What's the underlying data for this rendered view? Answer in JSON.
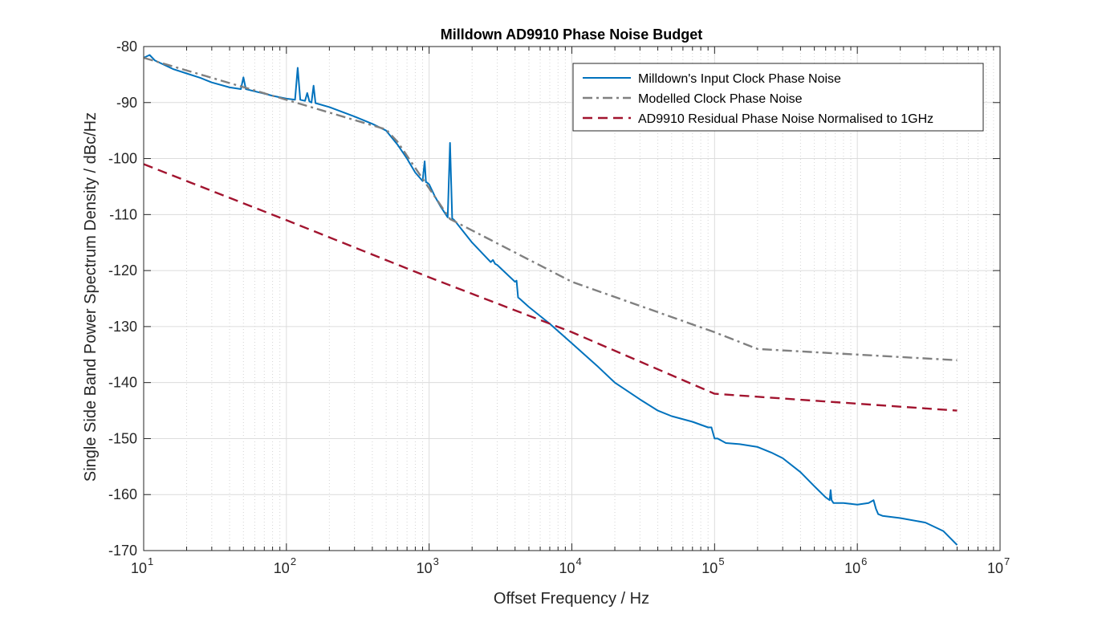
{
  "chart_data": {
    "type": "line",
    "title": "Milldown AD9910 Phase Noise Budget",
    "xlabel": "Offset Frequency / Hz",
    "ylabel": "Single Side Band Power Spectrum Density / dBc/Hz",
    "xscale": "log",
    "xlim": [
      10,
      10000000
    ],
    "ylim": [
      -170,
      -80
    ],
    "grid": true,
    "legend_position": "top-right",
    "xticks": [
      {
        "base": "10",
        "exp": "1",
        "value": 10
      },
      {
        "base": "10",
        "exp": "2",
        "value": 100
      },
      {
        "base": "10",
        "exp": "3",
        "value": 1000
      },
      {
        "base": "10",
        "exp": "4",
        "value": 10000
      },
      {
        "base": "10",
        "exp": "5",
        "value": 100000
      },
      {
        "base": "10",
        "exp": "6",
        "value": 1000000
      },
      {
        "base": "10",
        "exp": "7",
        "value": 10000000
      }
    ],
    "yticks": [
      {
        "label": "-80",
        "value": -80
      },
      {
        "label": "-90",
        "value": -90
      },
      {
        "label": "-100",
        "value": -100
      },
      {
        "label": "-110",
        "value": -110
      },
      {
        "label": "-120",
        "value": -120
      },
      {
        "label": "-130",
        "value": -130
      },
      {
        "label": "-140",
        "value": -140
      },
      {
        "label": "-150",
        "value": -150
      },
      {
        "label": "-160",
        "value": -160
      },
      {
        "label": "-170",
        "value": -170
      }
    ],
    "series": [
      {
        "name": "Milldown's Input Clock Phase Noise",
        "color": "#0072BD",
        "style": "solid",
        "x": [
          10,
          11,
          12,
          14,
          16,
          20,
          25,
          30,
          40,
          48,
          50,
          52,
          60,
          70,
          80,
          100,
          115,
          120,
          125,
          135,
          140,
          145,
          150,
          155,
          160,
          200,
          300,
          400,
          500,
          600,
          700,
          800,
          900,
          930,
          950,
          970,
          1000,
          1100,
          1200,
          1350,
          1400,
          1450,
          1500,
          2000,
          2700,
          2800,
          2900,
          3000,
          4000,
          4100,
          4200,
          4300,
          5000,
          7000,
          10000,
          15000,
          20000,
          30000,
          40000,
          50000,
          70000,
          90000,
          95000,
          100000,
          105000,
          120000,
          150000,
          200000,
          250000,
          300000,
          400000,
          500000,
          600000,
          640000,
          650000,
          660000,
          680000,
          800000,
          1000000,
          1200000,
          1300000,
          1350000,
          1400000,
          1500000,
          2000000,
          3000000,
          4000000,
          5000000
        ],
        "y": [
          -82,
          -81.5,
          -82.5,
          -83.3,
          -84,
          -84.8,
          -85.6,
          -86.4,
          -87.3,
          -87.6,
          -85.5,
          -87.6,
          -88,
          -88.4,
          -88.8,
          -89.3,
          -89.5,
          -83.8,
          -89.5,
          -89.7,
          -88.3,
          -89.8,
          -90,
          -87,
          -90.1,
          -90.8,
          -92.5,
          -93.8,
          -95,
          -97.5,
          -100,
          -102.5,
          -104,
          -100.5,
          -104.2,
          -104.3,
          -104.6,
          -106.8,
          -108.5,
          -110.5,
          -97.2,
          -110.7,
          -111,
          -115,
          -118.5,
          -118.1,
          -118.8,
          -119,
          -122,
          -121.8,
          -124.8,
          -125,
          -126.5,
          -129.5,
          -133,
          -137,
          -140,
          -143,
          -145,
          -146,
          -147,
          -148,
          -148,
          -150,
          -150,
          -150.8,
          -151,
          -151.5,
          -152.5,
          -153.5,
          -156,
          -158.5,
          -160.5,
          -161,
          -159.2,
          -161,
          -161.5,
          -161.5,
          -161.8,
          -161.5,
          -161,
          -162.5,
          -163.5,
          -163.8,
          -164.2,
          -165,
          -166.5,
          -169
        ]
      },
      {
        "name": "Modelled Clock Phase Noise",
        "color": "#808080",
        "style": "dashdot",
        "x": [
          10,
          100,
          500,
          600,
          1400,
          10000,
          100000,
          200000,
          5000000
        ],
        "y": [
          -82,
          -89.5,
          -94.8,
          -97,
          -110.8,
          -122,
          -131,
          -134,
          -136
        ]
      },
      {
        "name": "AD9910 Residual Phase Noise Normalised to 1GHz",
        "color": "#A2142F",
        "style": "dashed",
        "x": [
          10,
          100,
          1000,
          10000,
          100000,
          5000000
        ],
        "y": [
          -101,
          -111,
          -121.2,
          -131,
          -142,
          -145
        ]
      }
    ]
  }
}
